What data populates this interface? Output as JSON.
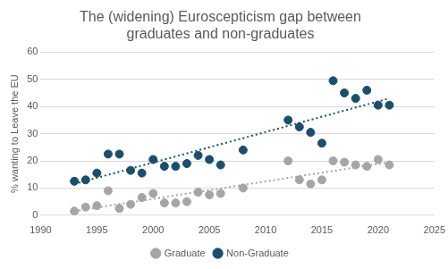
{
  "chart_data": {
    "type": "scatter",
    "title": [
      "The (widening) Euroscepticism gap between",
      "graduates and non-graduates"
    ],
    "y_label": "% wanting to Leave the EU",
    "x": [
      1993,
      1994,
      1995,
      1996,
      1997,
      1998,
      1999,
      2000,
      2001,
      2002,
      2003,
      2004,
      2005,
      2006,
      2008,
      2012,
      2013,
      2014,
      2015,
      2016,
      2017,
      2018,
      2019,
      2020,
      2021
    ],
    "series": [
      {
        "name": "Graduate",
        "color": "#a5a5a5",
        "marker": "circle",
        "values": [
          1.5,
          3,
          3.5,
          9,
          2.5,
          4,
          6.5,
          8,
          4.5,
          4.5,
          5,
          8.5,
          7.5,
          8,
          10,
          20,
          13,
          11.5,
          13,
          20,
          19.5,
          18.5,
          18,
          20.5,
          18.5
        ],
        "trend": {
          "x": [
            1993,
            2021
          ],
          "values": [
            1.5,
            19.5
          ],
          "line_style": "dotted"
        }
      },
      {
        "name": "Non-Graduate",
        "color": "#1c4e6b",
        "marker": "circle",
        "values": [
          12.5,
          13,
          15.5,
          22.5,
          22.5,
          16.5,
          15.5,
          20.5,
          18,
          18,
          19,
          22,
          20.5,
          18.5,
          24,
          35,
          32.5,
          30.5,
          26.5,
          49.5,
          45,
          43,
          46,
          40.5,
          40.5
        ],
        "trend": {
          "x": [
            1993,
            2021
          ],
          "values": [
            11.5,
            43
          ],
          "line_style": "dotted"
        }
      }
    ],
    "xlim": [
      1990,
      2025
    ],
    "xticks": [
      1990,
      1995,
      2000,
      2005,
      2010,
      2015,
      2020,
      2025
    ],
    "ylim": [
      0,
      60
    ],
    "yticks": [
      0,
      10,
      20,
      30,
      40,
      50,
      60
    ],
    "grid": true,
    "legend": "bottom"
  }
}
